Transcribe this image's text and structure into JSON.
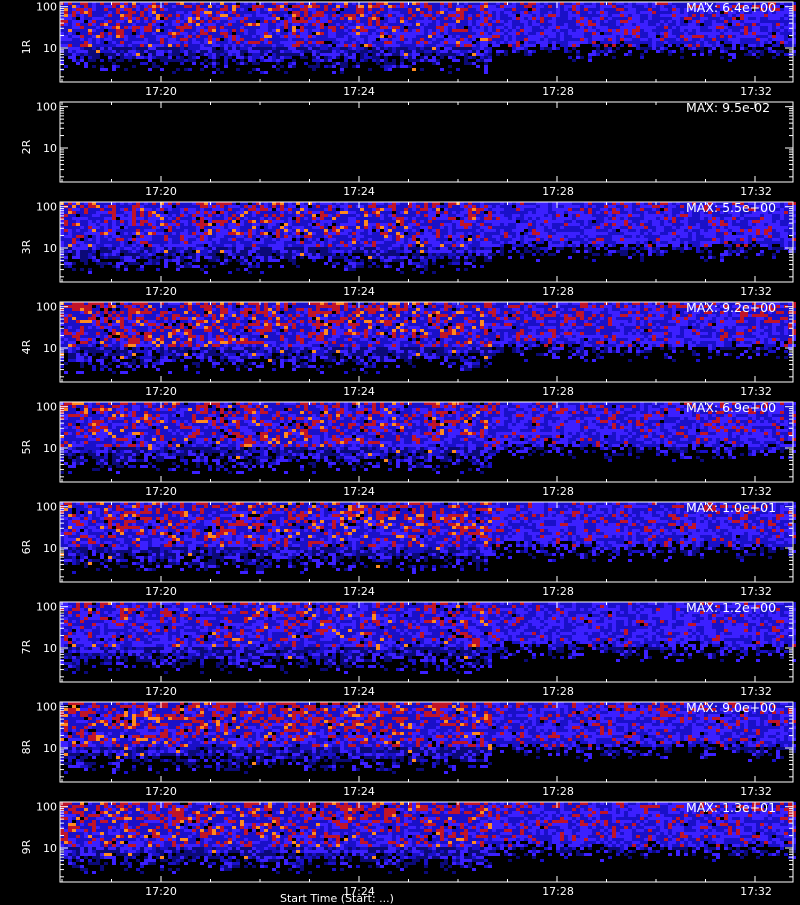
{
  "chart_data": {
    "type": "heatmap",
    "x_ticks": [
      "17:20",
      "17:24",
      "17:28",
      "17:32"
    ],
    "y_scale": "log",
    "y_ticks": [
      "10",
      "100"
    ],
    "xlabel_partial": "Start Time (Start: ...)",
    "colors": {
      "background": "#000000",
      "axis": "#ffffff",
      "low": "#1a10c8",
      "mid": "#3c20ff",
      "high": "#c01428",
      "peak": "#ff8a1e"
    },
    "panels": [
      {
        "label": "1R",
        "max": "MAX: 6.4e+00",
        "intensity": 0.62
      },
      {
        "label": "2R",
        "max": "MAX: 9.5e-02",
        "intensity": 0.0
      },
      {
        "label": "3R",
        "max": "MAX: 5.5e+00",
        "intensity": 0.55
      },
      {
        "label": "4R",
        "max": "MAX: 9.2e+00",
        "intensity": 0.85
      },
      {
        "label": "5R",
        "max": "MAX: 6.9e+00",
        "intensity": 0.65
      },
      {
        "label": "6R",
        "max": "MAX: 1.0e+01",
        "intensity": 0.7
      },
      {
        "label": "7R",
        "max": "MAX: 1.2e+00",
        "intensity": 0.45
      },
      {
        "label": "8R",
        "max": "MAX: 9.0e+00",
        "intensity": 0.85
      },
      {
        "label": "9R",
        "max": "MAX: 1.3e+01",
        "intensity": 0.8
      }
    ]
  }
}
